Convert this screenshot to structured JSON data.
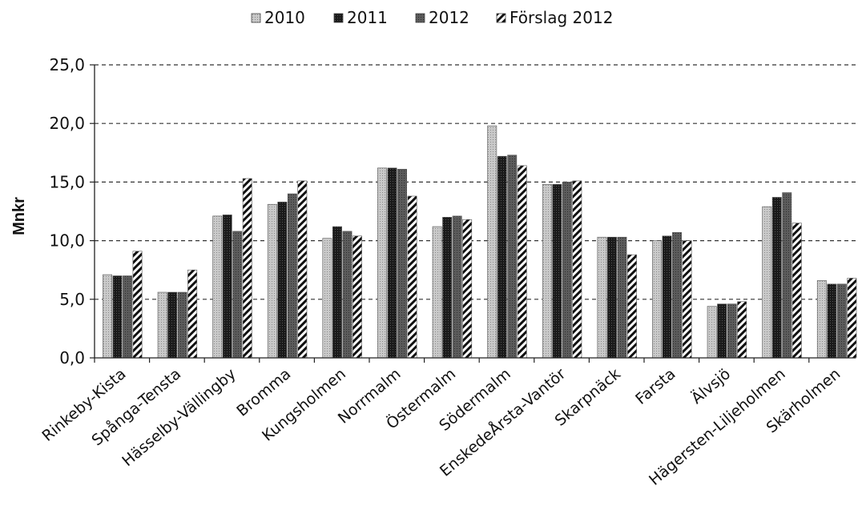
{
  "chart_data": {
    "type": "bar",
    "title": "",
    "xlabel": "",
    "ylabel": "Mnkr",
    "ylim": [
      0,
      25
    ],
    "yticks": [
      "0,0",
      "5,0",
      "10,0",
      "15,0",
      "20,0",
      "25,0"
    ],
    "grid": true,
    "legend_position": "top",
    "categories": [
      "Rinkeby-Kista",
      "Spånga-Tensta",
      "Hässelby-Vällingby",
      "Bromma",
      "Kungsholmen",
      "Norrmalm",
      "Östermalm",
      "Södermalm",
      "EnskedeÅrsta-Vantör",
      "Skarpnäck",
      "Farsta",
      "Älvsjö",
      "Hägersten-Liljeholmen",
      "Skärholmen"
    ],
    "series": [
      {
        "name": "2010",
        "color": "#c8c8c8",
        "pattern": "light-dots",
        "values": [
          7.1,
          5.6,
          12.1,
          13.1,
          10.2,
          16.2,
          11.2,
          19.8,
          14.8,
          10.3,
          10.0,
          4.4,
          12.9,
          6.6
        ]
      },
      {
        "name": "2011",
        "color": "#1c1c1c",
        "pattern": "dark-solid",
        "values": [
          7.0,
          5.6,
          12.2,
          13.3,
          11.2,
          16.2,
          12.0,
          17.2,
          14.8,
          10.3,
          10.4,
          4.6,
          13.7,
          6.3
        ]
      },
      {
        "name": "2012",
        "color": "#5a5a5a",
        "pattern": "medium",
        "values": [
          7.0,
          5.6,
          10.8,
          14.0,
          10.8,
          16.1,
          12.1,
          17.3,
          15.0,
          10.3,
          10.7,
          4.6,
          14.1,
          6.3
        ]
      },
      {
        "name": "Förslag 2012",
        "color": "#111111",
        "pattern": "diagonal-hatch",
        "values": [
          9.1,
          7.5,
          15.3,
          15.1,
          10.4,
          13.8,
          11.8,
          16.4,
          15.1,
          8.8,
          10.0,
          4.8,
          11.5,
          6.8
        ]
      }
    ]
  }
}
